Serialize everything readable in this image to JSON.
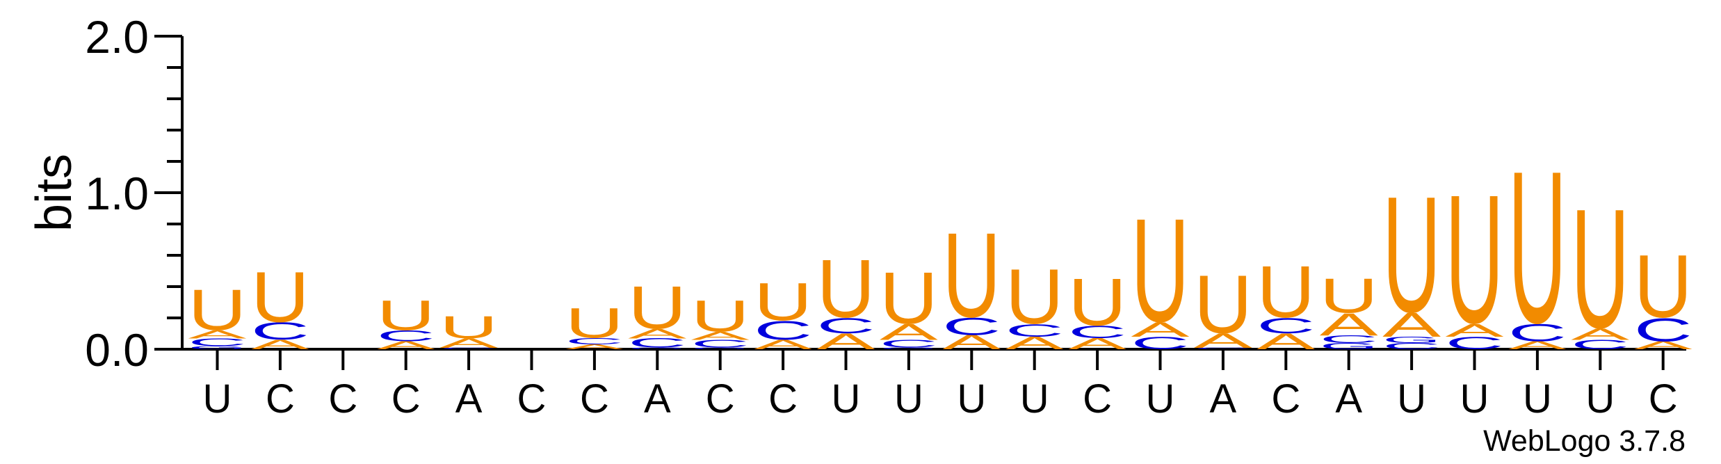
{
  "chart_data": {
    "type": "sequence-logo",
    "ylabel": "bits",
    "ylim": [
      0,
      2.0
    ],
    "yticks": [
      "0.0",
      "1.0",
      "2.0"
    ],
    "x_labels": [
      "U",
      "C",
      "C",
      "C",
      "A",
      "C",
      "C",
      "A",
      "C",
      "C",
      "U",
      "U",
      "U",
      "U",
      "C",
      "U",
      "A",
      "C",
      "A",
      "U",
      "U",
      "U",
      "U",
      "C"
    ],
    "colors": {
      "A": "#f28b00",
      "U": "#f28b00",
      "C": "#0000dd",
      "G": "#0000dd"
    },
    "stacks": [
      [
        [
          "G",
          0.02
        ],
        [
          "C",
          0.05
        ],
        [
          "A",
          0.05
        ],
        [
          "U",
          0.26
        ]
      ],
      [
        [
          "A",
          0.06
        ],
        [
          "C",
          0.11
        ],
        [
          "U",
          0.32
        ]
      ],
      [],
      [
        [
          "A",
          0.05
        ],
        [
          "C",
          0.07
        ],
        [
          "U",
          0.19
        ]
      ],
      [
        [
          "C",
          0.01
        ],
        [
          "A",
          0.06
        ],
        [
          "U",
          0.14
        ]
      ],
      [],
      [
        [
          "A",
          0.03
        ],
        [
          "C",
          0.04
        ],
        [
          "U",
          0.19
        ]
      ],
      [
        [
          "G",
          0.01
        ],
        [
          "C",
          0.06
        ],
        [
          "A",
          0.06
        ],
        [
          "U",
          0.27
        ]
      ],
      [
        [
          "G",
          0.01
        ],
        [
          "C",
          0.05
        ],
        [
          "A",
          0.05
        ],
        [
          "U",
          0.2
        ]
      ],
      [
        [
          "A",
          0.06
        ],
        [
          "C",
          0.12
        ],
        [
          "U",
          0.24
        ]
      ],
      [
        [
          "A",
          0.1
        ],
        [
          "C",
          0.1
        ],
        [
          "U",
          0.37
        ]
      ],
      [
        [
          "G",
          0.01
        ],
        [
          "C",
          0.05
        ],
        [
          "A",
          0.1
        ],
        [
          "U",
          0.33
        ]
      ],
      [
        [
          "A",
          0.09
        ],
        [
          "C",
          0.11
        ],
        [
          "U",
          0.54
        ]
      ],
      [
        [
          "A",
          0.08
        ],
        [
          "C",
          0.08
        ],
        [
          "U",
          0.35
        ]
      ],
      [
        [
          "A",
          0.07
        ],
        [
          "C",
          0.08
        ],
        [
          "U",
          0.3
        ]
      ],
      [
        [
          "C",
          0.08
        ],
        [
          "A",
          0.09
        ],
        [
          "U",
          0.66
        ]
      ],
      [
        [
          "C",
          0.01
        ],
        [
          "A",
          0.09
        ],
        [
          "U",
          0.37
        ]
      ],
      [
        [
          "A",
          0.1
        ],
        [
          "C",
          0.1
        ],
        [
          "U",
          0.33
        ]
      ],
      [
        [
          "G",
          0.04
        ],
        [
          "C",
          0.05
        ],
        [
          "A",
          0.14
        ],
        [
          "U",
          0.22
        ]
      ],
      [
        [
          "C",
          0.04
        ],
        [
          "G",
          0.04
        ],
        [
          "A",
          0.15
        ],
        [
          "U",
          0.74
        ]
      ],
      [
        [
          "C",
          0.08
        ],
        [
          "A",
          0.08
        ],
        [
          "U",
          0.82
        ]
      ],
      [
        [
          "A",
          0.05
        ],
        [
          "C",
          0.11
        ],
        [
          "U",
          0.97
        ]
      ],
      [
        [
          "C",
          0.06
        ],
        [
          "A",
          0.07
        ],
        [
          "U",
          0.76
        ]
      ],
      [
        [
          "A",
          0.05
        ],
        [
          "C",
          0.15
        ],
        [
          "U",
          0.4
        ]
      ]
    ],
    "footer": "WebLogo 3.7.8"
  }
}
